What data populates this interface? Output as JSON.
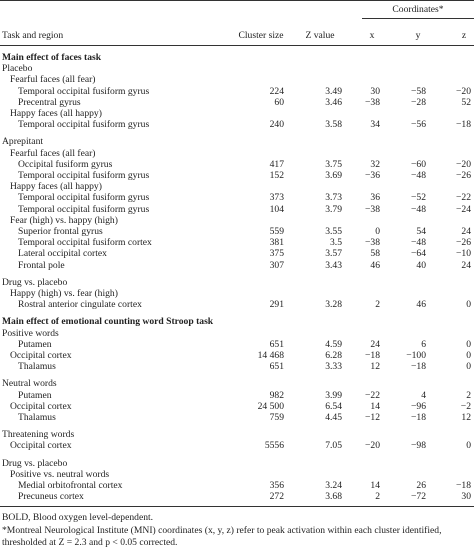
{
  "table": {
    "spanner": "Coordinates*",
    "columns": [
      "Task and region",
      "Cluster size",
      "Z value",
      "x",
      "y",
      "z"
    ],
    "rows": [
      {
        "label": "Main effect of faces task",
        "level": 0,
        "bold": true
      },
      {
        "label": "Placebo",
        "level": 0
      },
      {
        "label": "Fearful faces (all fear)",
        "level": 1
      },
      {
        "label": "Temporal occipital fusiform gyrus",
        "level": 2,
        "cells": [
          "224",
          "3.49",
          "30",
          "−58",
          "−20"
        ]
      },
      {
        "label": "Precentral gyrus",
        "level": 2,
        "cells": [
          "60",
          "3.46",
          "−38",
          "−28",
          "52"
        ]
      },
      {
        "label": "Happy faces (all happy)",
        "level": 1
      },
      {
        "label": "Temporal occipital fusiform gyrus",
        "level": 2,
        "cells": [
          "240",
          "3.58",
          "34",
          "−56",
          "−18"
        ]
      },
      {
        "label": "Aprepitant",
        "level": 0
      },
      {
        "label": "Fearful faces (all fear)",
        "level": 1
      },
      {
        "label": "Occipital fusiform gyrus",
        "level": 2,
        "cells": [
          "417",
          "3.75",
          "32",
          "−60",
          "−20"
        ]
      },
      {
        "label": "Temporal occipital fusiform gyrus",
        "level": 2,
        "cells": [
          "152",
          "3.69",
          "−36",
          "−48",
          "−26"
        ]
      },
      {
        "label": "Happy faces (all happy)",
        "level": 1
      },
      {
        "label": "Temporal occipital fusiform gyrus",
        "level": 2,
        "cells": [
          "373",
          "3.73",
          "36",
          "−52",
          "−22"
        ]
      },
      {
        "label": "Temporal occipital fusiform gyrus",
        "level": 2,
        "cells": [
          "104",
          "3.79",
          "−38",
          "−48",
          "−24"
        ]
      },
      {
        "label": "Fear (high) vs. happy (high)",
        "level": 1
      },
      {
        "label": "Superior frontal gyrus",
        "level": 2,
        "cells": [
          "559",
          "3.55",
          "0",
          "54",
          "24"
        ]
      },
      {
        "label": "Temporal occipital fusiform cortex",
        "level": 2,
        "cells": [
          "381",
          "3.5",
          "−38",
          "−48",
          "−26"
        ]
      },
      {
        "label": "Lateral occipital cortex",
        "level": 2,
        "cells": [
          "375",
          "3.57",
          "58",
          "−64",
          "−10"
        ]
      },
      {
        "label": "Frontal pole",
        "level": 2,
        "cells": [
          "307",
          "3.43",
          "46",
          "40",
          "24"
        ]
      },
      {
        "label": "Drug vs. placebo",
        "level": 0
      },
      {
        "label": "Happy (high) vs. fear (high)",
        "level": 1
      },
      {
        "label": "Rostral anterior cingulate cortex",
        "level": 2,
        "cells": [
          "291",
          "3.28",
          "2",
          "46",
          "0"
        ]
      },
      {
        "label": "Main effect of emotional counting word Stroop task",
        "level": 0,
        "bold": true
      },
      {
        "label": "Positive words",
        "level": 0
      },
      {
        "label": "Putamen",
        "level": 2,
        "cells": [
          "651",
          "4.59",
          "24",
          "6",
          "0"
        ]
      },
      {
        "label": "Occipital cortex",
        "level": 1,
        "cells": [
          "14 468",
          "6.28",
          "−18",
          "−100",
          "0"
        ]
      },
      {
        "label": "Thalamus",
        "level": 2,
        "cells": [
          "651",
          "3.33",
          "12",
          "−18",
          "0"
        ]
      },
      {
        "label": "Neutral words",
        "level": 0
      },
      {
        "label": "Putamen",
        "level": 2,
        "cells": [
          "982",
          "3.99",
          "−22",
          "4",
          "2"
        ]
      },
      {
        "label": "Occipital cortex",
        "level": 1,
        "cells": [
          "24 500",
          "6.54",
          "14",
          "−96",
          "−2"
        ]
      },
      {
        "label": "Thalamus",
        "level": 2,
        "cells": [
          "759",
          "4.45",
          "−12",
          "−18",
          "12"
        ]
      },
      {
        "label": "Threatening words",
        "level": 0
      },
      {
        "label": "Occipital cortex",
        "level": 1,
        "cells": [
          "5556",
          "7.05",
          "−20",
          "−98",
          "0"
        ]
      },
      {
        "label": "Drug vs. placebo",
        "level": 0
      },
      {
        "label": "Positive vs. neutral words",
        "level": 1
      },
      {
        "label": "Medial orbitofrontal cortex",
        "level": 2,
        "cells": [
          "356",
          "3.24",
          "14",
          "26",
          "−18"
        ]
      },
      {
        "label": "Precuneus cortex",
        "level": 2,
        "cells": [
          "272",
          "3.68",
          "2",
          "−72",
          "30"
        ]
      }
    ],
    "footnotes": [
      "BOLD, Blood oxygen level-dependent.",
      "*Montreal Neurological Institute (MNI) coordinates (x, y, z) refer to peak activation within each cluster identified,",
      "thresholded at Z = 2.3 and p < 0.05 corrected."
    ]
  }
}
